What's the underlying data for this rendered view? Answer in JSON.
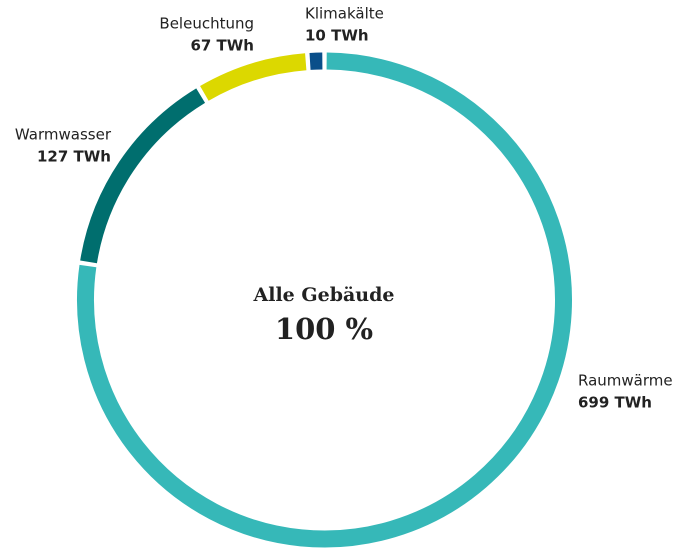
{
  "chart_data": {
    "type": "donut",
    "center_title": "Alle Gebäude",
    "center_label": "100 %",
    "categories": [
      "Raumwärme",
      "Warmwasser",
      "Beleuchtung",
      "Klimakälte"
    ],
    "values": [
      699,
      127,
      67,
      10
    ],
    "value_labels": [
      "699 TWh",
      "127 TWh",
      "67 TWh",
      "10 TWh"
    ],
    "colors": [
      "#36b8b8",
      "#006e6e",
      "#dcd800",
      "#0a4f8a"
    ]
  }
}
